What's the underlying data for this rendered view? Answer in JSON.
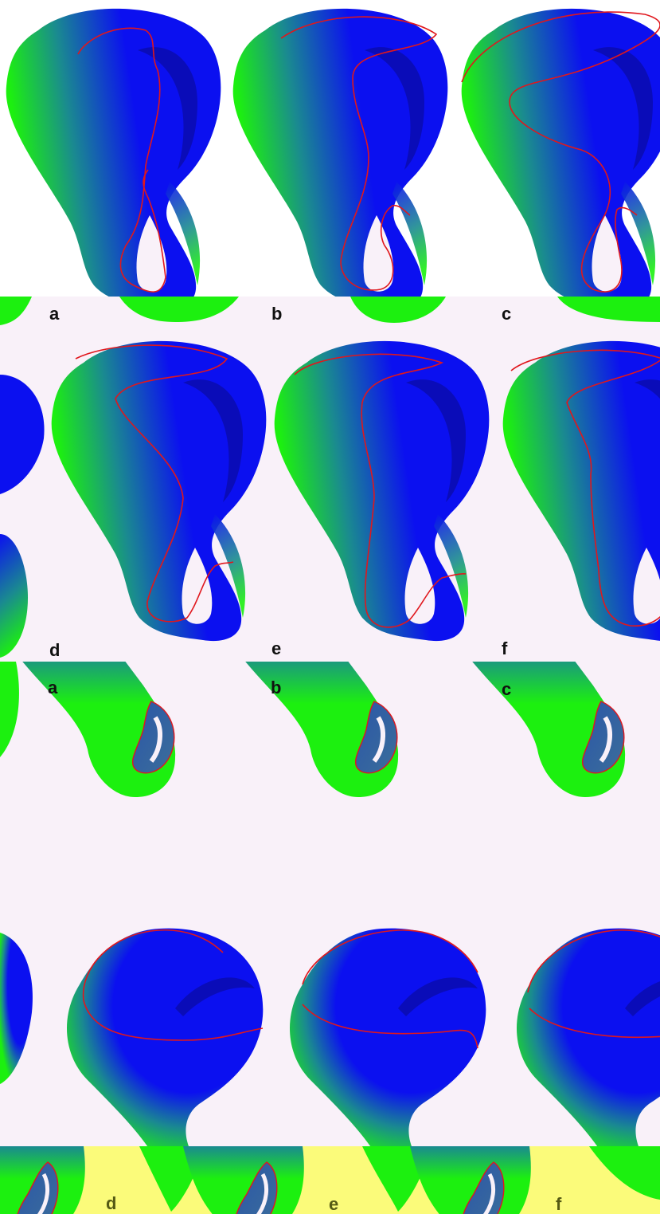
{
  "colors": {
    "background_light": "#f9f1f9",
    "background_yellow": "#fbfb7a",
    "surface_blue": "#0b10f0",
    "surface_green": "#1cf00f",
    "contour_red": "#e0171d",
    "label_dark": "#111111",
    "label_olive": "#555a14"
  },
  "figure_1": {
    "row_1_labels": [
      "a",
      "b",
      "c"
    ],
    "row_2_labels": [
      "d",
      "e",
      "f"
    ]
  },
  "figure_2": {
    "row_1_labels": [
      "a",
      "b",
      "c"
    ],
    "row_2_labels": [
      "d",
      "e",
      "f"
    ]
  }
}
